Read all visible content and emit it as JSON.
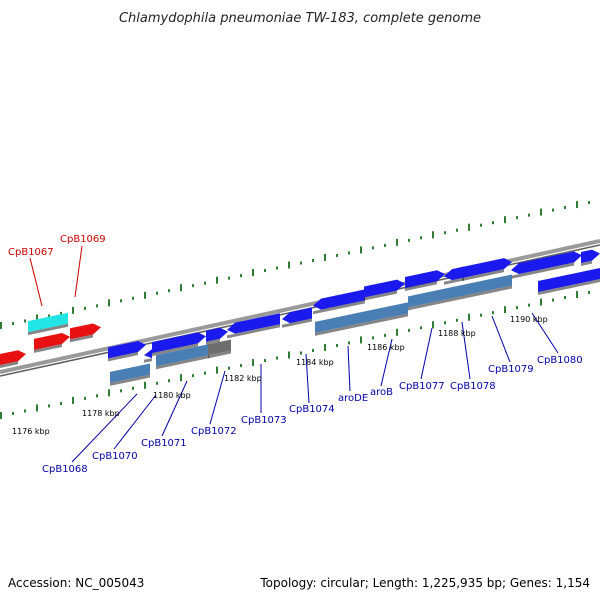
{
  "header": {
    "title": "Chlamydophila pneumoniae TW-183, complete genome"
  },
  "footer": {
    "accession": "Accession: NC_005043",
    "summary": "Topology: circular; Length: 1,225,935 bp; Genes: 1,154"
  },
  "colors": {
    "background": "#ffffff",
    "backbone": "#8c8c8c",
    "tick": "#2e7d32",
    "forward_gene": "#1a1aee",
    "reverse_gene": "#4a7fb5",
    "pseudo_gene": "#6e6e6e",
    "highlight_gene": "#e81010",
    "highlight_cyan": "#22e6e6",
    "label_blue": "#0000aa",
    "label_red": "#cc0000"
  },
  "ticks": [
    "1176 kbp",
    "1178 kbp",
    "1180 kbp",
    "1182 kbp",
    "1184 kbp",
    "1186 kbp",
    "1188 kbp",
    "1190 kbp"
  ],
  "gene_labels": [
    {
      "name": "CpB1067",
      "color": "red"
    },
    {
      "name": "CpB1069",
      "color": "red"
    },
    {
      "name": "CpB1068",
      "color": "blue"
    },
    {
      "name": "CpB1070",
      "color": "blue"
    },
    {
      "name": "CpB1071",
      "color": "blue"
    },
    {
      "name": "CpB1072",
      "color": "blue"
    },
    {
      "name": "CpB1073",
      "color": "blue"
    },
    {
      "name": "CpB1074",
      "color": "blue"
    },
    {
      "name": "aroDE",
      "color": "blue"
    },
    {
      "name": "aroB",
      "color": "blue"
    },
    {
      "name": "CpB1077",
      "color": "blue"
    },
    {
      "name": "CpB1078",
      "color": "blue"
    },
    {
      "name": "CpB1079",
      "color": "blue"
    },
    {
      "name": "CpB1080",
      "color": "blue"
    }
  ]
}
